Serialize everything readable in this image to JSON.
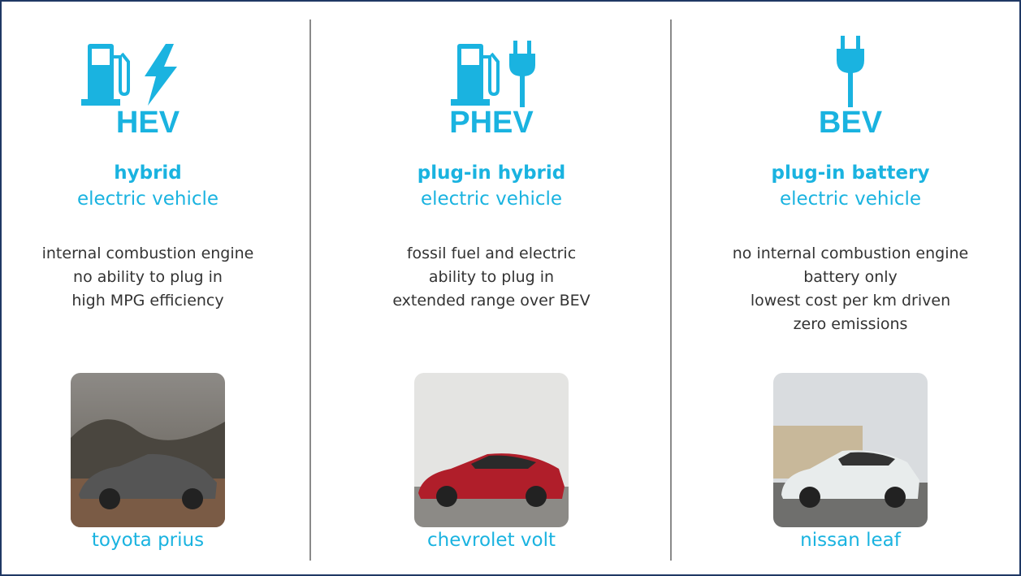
{
  "columns": [
    {
      "acronym": "HEV",
      "title": "hybrid",
      "subtitle": "electric vehicle",
      "features": [
        "internal combustion engine",
        "no ability to plug in",
        "high MPG efficiency"
      ],
      "car": "toyota prius"
    },
    {
      "acronym": "PHEV",
      "title": "plug-in hybrid",
      "subtitle": "electric vehicle",
      "features": [
        "fossil fuel and electric",
        "ability to plug in",
        "extended range over BEV"
      ],
      "car": "chevrolet volt"
    },
    {
      "acronym": "BEV",
      "title": "plug-in battery",
      "subtitle": "electric vehicle",
      "features": [
        "no internal combustion engine",
        "battery only",
        "lowest cost per km driven",
        "zero emissions"
      ],
      "car": "nissan leaf"
    }
  ]
}
